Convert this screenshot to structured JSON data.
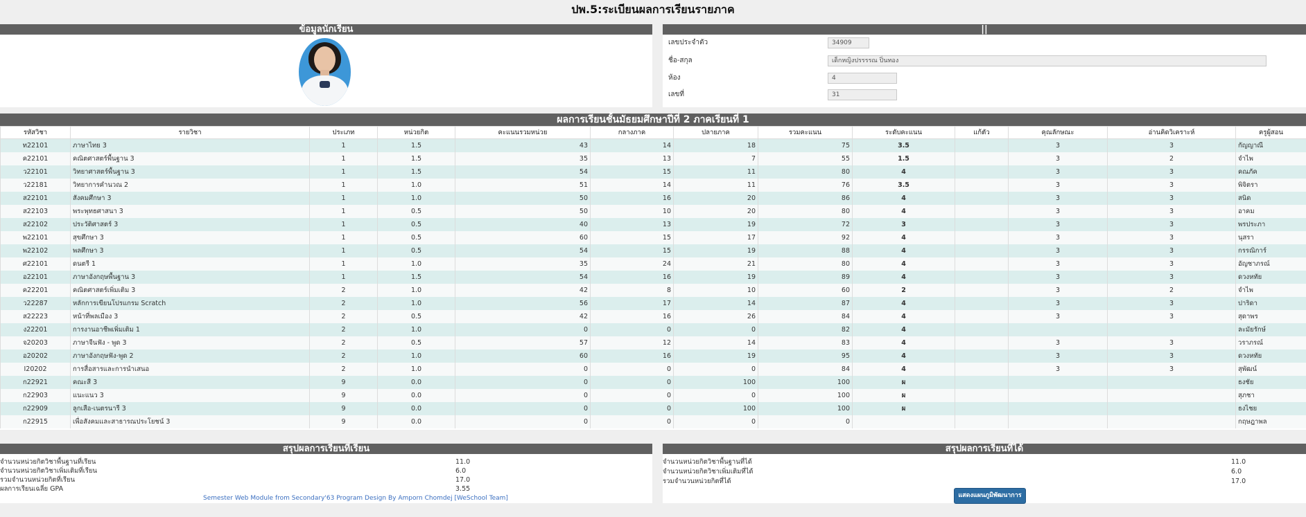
{
  "page_title": "ปพ.5:ระเบียนผลการเรียนรายภาค",
  "student_panel": {
    "title": "ข้อมูลนักเรียน"
  },
  "info_panel": {
    "title": "||",
    "fields": [
      {
        "label": "เลขประจำตัว",
        "value": "34909"
      },
      {
        "label": "ชื่อ-สกุล",
        "value": "เด็กหญิงปรรรรณ ปิ่นทอง"
      },
      {
        "label": "ห้อง",
        "value": "4"
      },
      {
        "label": "เลขที่",
        "value": "31"
      }
    ]
  },
  "grades": {
    "title": "ผลการเรียนชั้นมัธยมศึกษาปีที่ 2 ภาคเรียนที่ 1",
    "columns": [
      "รหัสวิชา",
      "รายวิชา",
      "ประเภท",
      "หน่วยกิต",
      "คะแนนรวมหน่วย",
      "กลางภาค",
      "ปลายภาค",
      "รวมคะแนน",
      "ระดับคะแนน",
      "แก้ตัว",
      "คุณลักษณะ",
      "อ่านคิดวิเคราะห์",
      "ครูผู้สอน"
    ],
    "rows": [
      [
        "ท22101",
        "ภาษาไทย 3",
        "1",
        "1.5",
        "43",
        "14",
        "18",
        "75",
        "3.5",
        "",
        "3",
        "3",
        "กัญญาณี"
      ],
      [
        "ค22101",
        "คณิตศาสตร์พื้นฐาน 3",
        "1",
        "1.5",
        "35",
        "13",
        "7",
        "55",
        "1.5",
        "",
        "3",
        "2",
        "จำไพ"
      ],
      [
        "ว22101",
        "วิทยาศาสตร์พื้นฐาน 3",
        "1",
        "1.5",
        "54",
        "15",
        "11",
        "80",
        "4",
        "",
        "3",
        "3",
        "คณภัค"
      ],
      [
        "ว22181",
        "วิทยาการคำนวณ 2",
        "1",
        "1.0",
        "51",
        "14",
        "11",
        "76",
        "3.5",
        "",
        "3",
        "3",
        "พิจิตรา"
      ],
      [
        "ส22101",
        "สังคมศึกษา 3",
        "1",
        "1.0",
        "50",
        "16",
        "20",
        "86",
        "4",
        "",
        "3",
        "3",
        "สนิด"
      ],
      [
        "ส22103",
        "พระพุทธศาสนา 3",
        "1",
        "0.5",
        "50",
        "10",
        "20",
        "80",
        "4",
        "",
        "3",
        "3",
        "อาคม"
      ],
      [
        "ส22102",
        "ประวัติศาสตร์ 3",
        "1",
        "0.5",
        "40",
        "13",
        "19",
        "72",
        "3",
        "",
        "3",
        "3",
        "พรประภา"
      ],
      [
        "พ22101",
        "สุขศึกษา 3",
        "1",
        "0.5",
        "60",
        "15",
        "17",
        "92",
        "4",
        "",
        "3",
        "3",
        "นุสรา"
      ],
      [
        "พ22102",
        "พลศึกษา 3",
        "1",
        "0.5",
        "54",
        "15",
        "19",
        "88",
        "4",
        "",
        "3",
        "3",
        "กรรณิการ์"
      ],
      [
        "ศ22101",
        "ดนตรี 1",
        "1",
        "1.0",
        "35",
        "24",
        "21",
        "80",
        "4",
        "",
        "3",
        "3",
        "อัญชาภรณ์"
      ],
      [
        "อ22101",
        "ภาษาอังกฤษพื้นฐาน 3",
        "1",
        "1.5",
        "54",
        "16",
        "19",
        "89",
        "4",
        "",
        "3",
        "3",
        "ดวงหทัย"
      ],
      [
        "ค22201",
        "คณิตศาสตร์เพิ่มเติม 3",
        "2",
        "1.0",
        "42",
        "8",
        "10",
        "60",
        "2",
        "",
        "3",
        "2",
        "จำไพ"
      ],
      [
        "ว22287",
        "หลักการเขียนโปรแกรม Scratch",
        "2",
        "1.0",
        "56",
        "17",
        "14",
        "87",
        "4",
        "",
        "3",
        "3",
        "ปาริดา"
      ],
      [
        "ส22223",
        "หน้าที่พลเมือง 3",
        "2",
        "0.5",
        "42",
        "16",
        "26",
        "84",
        "4",
        "",
        "3",
        "3",
        "สุดาพร"
      ],
      [
        "ง22201",
        "การงานอาชีพเพิ่มเติม 1",
        "2",
        "1.0",
        "0",
        "0",
        "0",
        "82",
        "4",
        "",
        "",
        "",
        "ละมัยรักษ์"
      ],
      [
        "จ20203",
        "ภาษาจีนฟัง - พูด 3",
        "2",
        "0.5",
        "57",
        "12",
        "14",
        "83",
        "4",
        "",
        "3",
        "3",
        "วราภรณ์"
      ],
      [
        "อ20202",
        "ภาษาอังกฤษฟัง-พูด 2",
        "2",
        "1.0",
        "60",
        "16",
        "19",
        "95",
        "4",
        "",
        "3",
        "3",
        "ดวงหทัย"
      ],
      [
        "I20202",
        "การสื่อสารและการนำเสนอ",
        "2",
        "1.0",
        "0",
        "0",
        "0",
        "84",
        "4",
        "",
        "3",
        "3",
        "สุพัฒน์"
      ],
      [
        "ก22921",
        "คณะสี 3",
        "9",
        "0.0",
        "0",
        "0",
        "100",
        "100",
        "ผ",
        "",
        "",
        "",
        "ธงชัย"
      ],
      [
        "ก22903",
        "แนะแนว 3",
        "9",
        "0.0",
        "0",
        "0",
        "0",
        "100",
        "ผ",
        "",
        "",
        "",
        "สุภชา"
      ],
      [
        "ก22909",
        "ลูกเสือ-เนตรนารี 3",
        "9",
        "0.0",
        "0",
        "0",
        "100",
        "100",
        "ผ",
        "",
        "",
        "",
        "ธงไชย"
      ],
      [
        "ก22915",
        "เพื่อสังคมและสาธารณประโยชน์ 3",
        "9",
        "0.0",
        "0",
        "0",
        "0",
        "0",
        "",
        "",
        "",
        "",
        "กฤษฎาพล"
      ]
    ]
  },
  "summary_studied": {
    "title": "สรุปผลการเรียนที่เรียน",
    "rows": [
      {
        "label": "จำนวนหน่วยกิตวิชาพื้นฐานที่เรียน",
        "value": "11.0"
      },
      {
        "label": "จำนวนหน่วยกิตวิชาเพิ่มเติมที่เรียน",
        "value": "6.0"
      },
      {
        "label": "รวมจำนวนหน่วยกิตที่เรียน",
        "value": "17.0"
      },
      {
        "label": "ผลการเรียนเฉลี่ย GPA",
        "value": "3.55"
      }
    ],
    "credit": "Semester Web Module from Secondary'63 Program Design By Amporn Chomdej [WeSchool Team]"
  },
  "summary_earned": {
    "title": "สรุปผลการเรียนที่ได้",
    "rows": [
      {
        "label": "จำนวนหน่วยกิตวิชาพื้นฐานที่ได้",
        "value": "11.0"
      },
      {
        "label": "จำนวนหน่วยกิตวิชาเพิ่มเติมที่ได้",
        "value": "6.0"
      },
      {
        "label": "รวมจำนวนหน่วยกิตที่ได้",
        "value": "17.0"
      }
    ],
    "button_label": "แสดงแผนภูมิพัฒนาการ"
  },
  "colors": {
    "header_bar": "#606060",
    "row_alt": "#dbeeed",
    "button": "#2d6da3",
    "link": "#3b6fc0"
  }
}
